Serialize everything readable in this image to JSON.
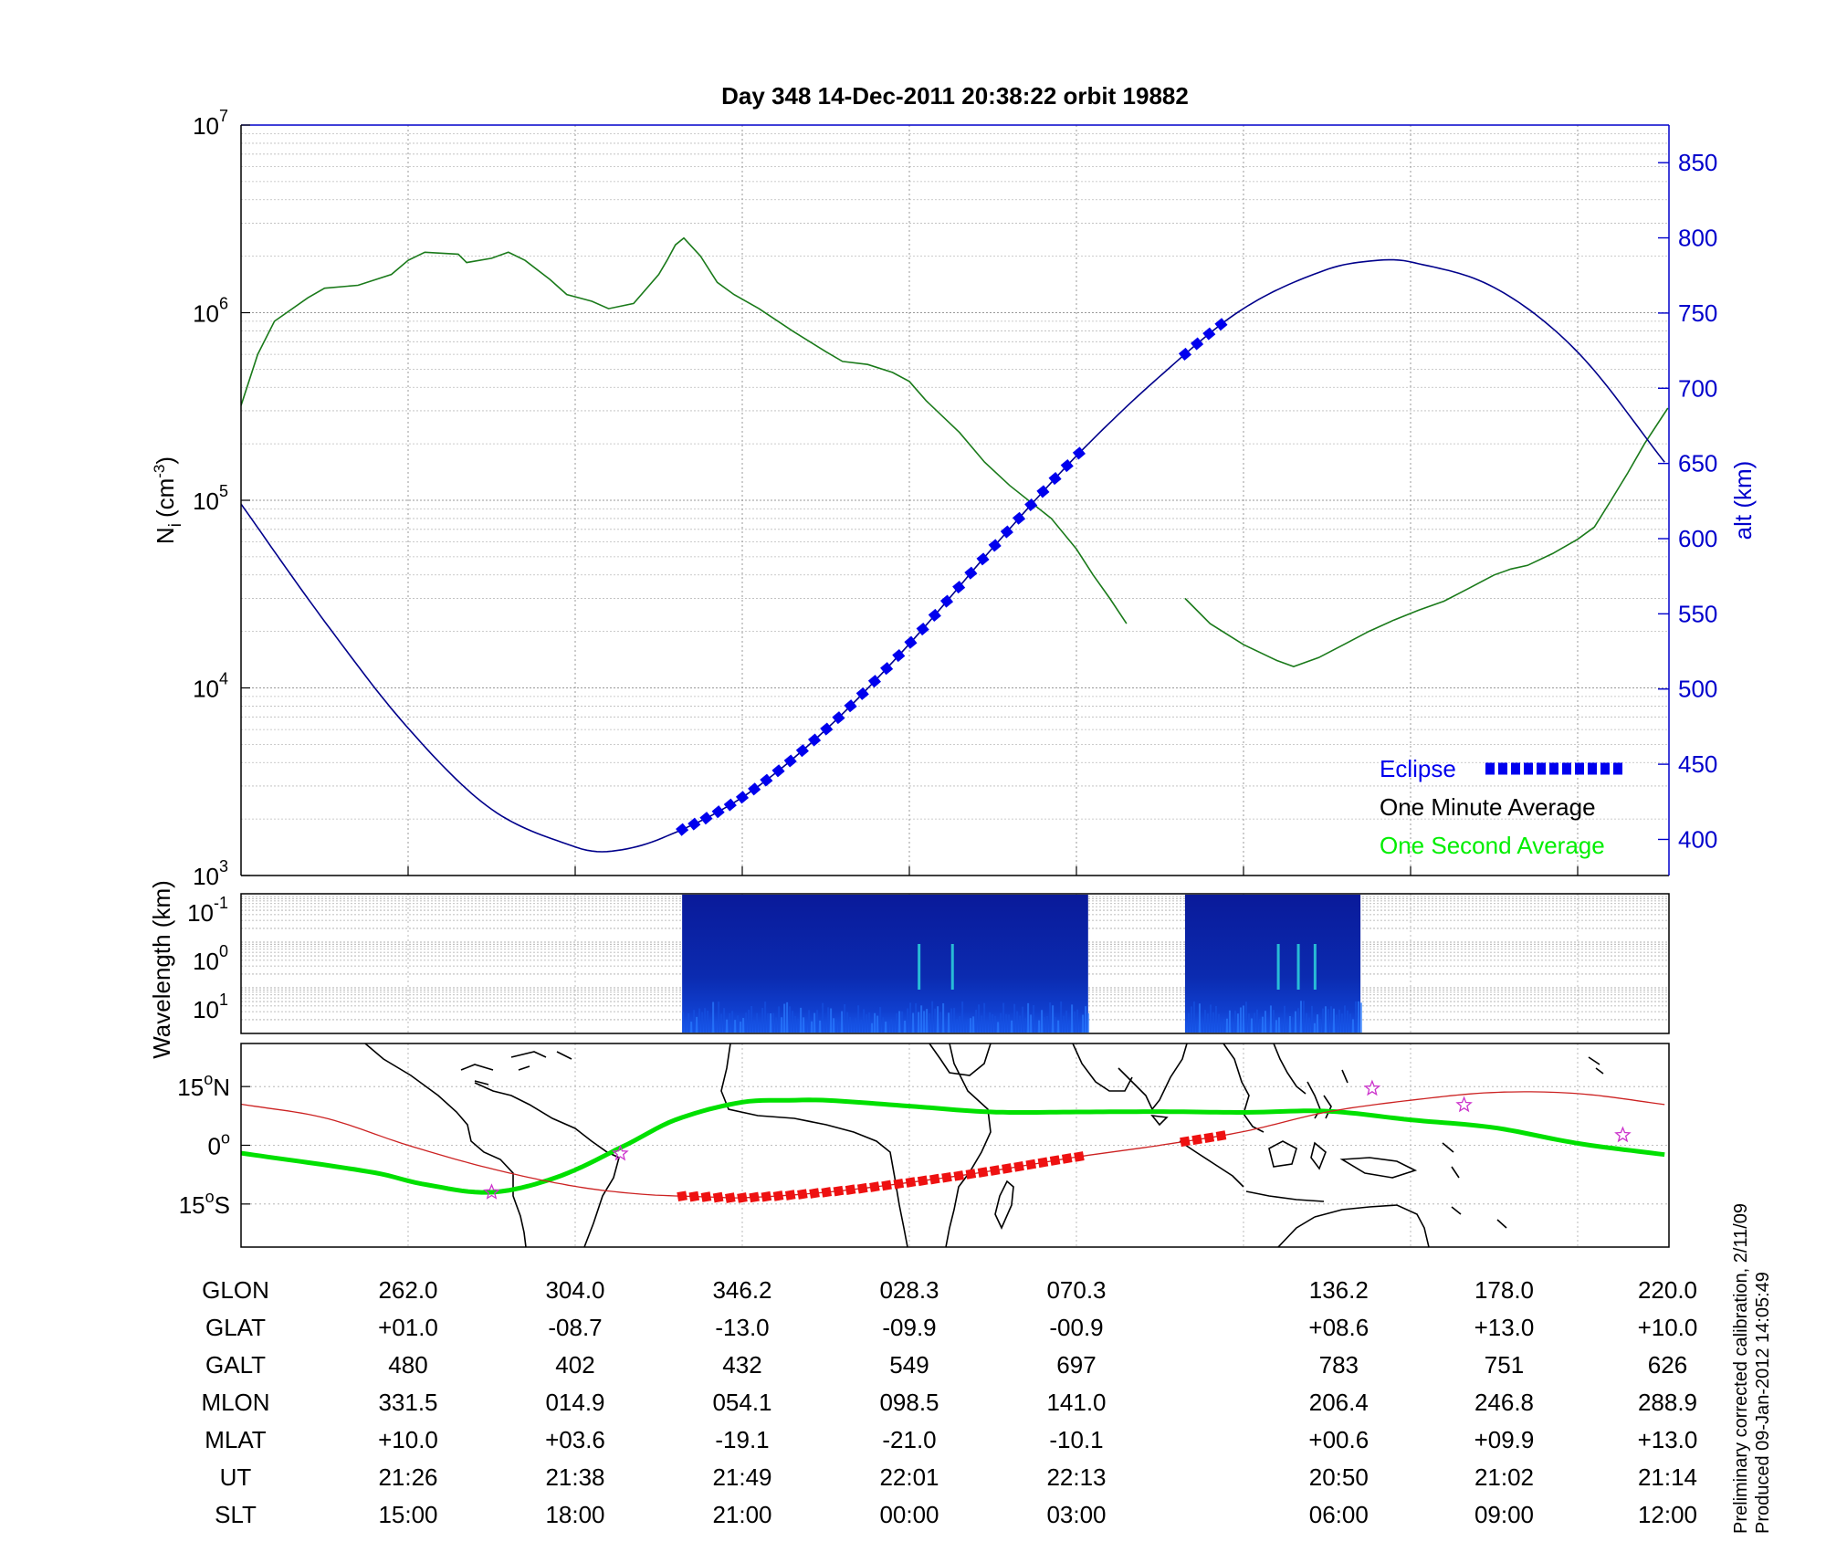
{
  "title": "Day 348  14-Dec-2011 20:38:22   orbit 19882",
  "chart_data": [
    {
      "type": "line",
      "panel": "density-altitude",
      "ylabel_left": "N",
      "ylabel_left_sub": "i",
      "ylabel_left_unit": "(cm",
      "ylabel_left_unit_sup": "-3",
      "ylabel_left_unit_close": ")",
      "ylabel_right": "alt (km)",
      "y_left_scale": "log",
      "y_left_range": [
        1000,
        10000000
      ],
      "y_left_ticks": [
        {
          "base": "10",
          "exp": "3"
        },
        {
          "base": "10",
          "exp": "4"
        },
        {
          "base": "10",
          "exp": "5"
        },
        {
          "base": "10",
          "exp": "6"
        },
        {
          "base": "10",
          "exp": "7"
        }
      ],
      "y_right_range": [
        376,
        875
      ],
      "y_right_ticks": [
        "400",
        "450",
        "500",
        "550",
        "600",
        "650",
        "700",
        "750",
        "800",
        "850"
      ],
      "x_range": [
        0,
        8.54
      ],
      "legend": {
        "placement": "bottom-right",
        "entries": [
          {
            "label": "Eclipse",
            "color": "#0000ee"
          },
          {
            "label": "One Minute Average",
            "color": "#000000"
          },
          {
            "label": "One Second Average",
            "color": "#00ee00"
          }
        ]
      },
      "series": [
        {
          "role": "density",
          "color": "#1a7a1a",
          "segments": [
            [
              [
                0,
                320000
              ],
              [
                0.1,
                600000
              ],
              [
                0.2,
                900000
              ],
              [
                0.4,
                1200000
              ],
              [
                0.5,
                1350000
              ],
              [
                0.7,
                1400000
              ],
              [
                0.9,
                1600000
              ],
              [
                1.0,
                1900000
              ],
              [
                1.1,
                2100000
              ],
              [
                1.3,
                2050000
              ],
              [
                1.35,
                1850000
              ],
              [
                1.5,
                1950000
              ],
              [
                1.6,
                2100000
              ],
              [
                1.7,
                1900000
              ],
              [
                1.85,
                1500000
              ],
              [
                1.95,
                1250000
              ],
              [
                2.1,
                1150000
              ],
              [
                2.2,
                1050000
              ],
              [
                2.35,
                1120000
              ],
              [
                2.5,
                1600000
              ],
              [
                2.55,
                1900000
              ],
              [
                2.6,
                2300000
              ],
              [
                2.65,
                2500000
              ],
              [
                2.75,
                2000000
              ],
              [
                2.85,
                1450000
              ],
              [
                2.95,
                1250000
              ],
              [
                3.1,
                1050000
              ],
              [
                3.3,
                800000
              ],
              [
                3.5,
                620000
              ],
              [
                3.6,
                550000
              ],
              [
                3.75,
                530000
              ],
              [
                3.9,
                480000
              ],
              [
                4.0,
                430000
              ],
              [
                4.1,
                340000
              ],
              [
                4.3,
                230000
              ],
              [
                4.45,
                160000
              ],
              [
                4.6,
                120000
              ],
              [
                4.85,
                80000
              ],
              [
                5.0,
                55000
              ],
              [
                5.1,
                40000
              ],
              [
                5.2,
                30000
              ],
              [
                5.3,
                22000
              ]
            ],
            [
              [
                5.65,
                30000
              ],
              [
                5.8,
                22000
              ],
              [
                6.0,
                17000
              ],
              [
                6.2,
                14000
              ],
              [
                6.3,
                13000
              ],
              [
                6.45,
                14500
              ],
              [
                6.6,
                17000
              ],
              [
                6.75,
                20000
              ],
              [
                6.9,
                23000
              ],
              [
                7.05,
                26000
              ],
              [
                7.2,
                29000
              ],
              [
                7.35,
                34000
              ],
              [
                7.5,
                40000
              ],
              [
                7.6,
                43000
              ],
              [
                7.7,
                45000
              ],
              [
                7.85,
                52000
              ],
              [
                8.0,
                62000
              ],
              [
                8.1,
                72000
              ],
              [
                8.2,
                100000
              ],
              [
                8.3,
                140000
              ],
              [
                8.4,
                200000
              ],
              [
                8.54,
                310000
              ]
            ]
          ]
        },
        {
          "role": "altitude",
          "color": "#00008b",
          "points": [
            [
              0,
              623
            ],
            [
              0.5,
              545
            ],
            [
              1.0,
              474
            ],
            [
              1.5,
              420
            ],
            [
              2.0,
              395
            ],
            [
              2.2,
              392
            ],
            [
              2.5,
              400
            ],
            [
              3.0,
              428
            ],
            [
              3.5,
              473
            ],
            [
              4.0,
              530
            ],
            [
              4.5,
              594
            ],
            [
              5.0,
              655
            ],
            [
              5.5,
              708
            ],
            [
              6.0,
              753
            ],
            [
              6.5,
              779
            ],
            [
              6.8,
              785
            ],
            [
              7.0,
              784
            ],
            [
              7.5,
              767
            ],
            [
              8.0,
              724
            ],
            [
              8.54,
              648
            ]
          ]
        },
        {
          "role": "eclipse",
          "color": "#0000ee",
          "segments": [
            [
              2.64,
              5.07
            ],
            [
              5.65,
              5.9
            ]
          ]
        }
      ]
    },
    {
      "type": "heatmap",
      "panel": "spectrogram",
      "ylabel": "Wavelength (km)",
      "y_ticks": [
        {
          "base": "10",
          "exp": "-1"
        },
        {
          "base": "10",
          "exp": "0"
        },
        {
          "base": "10",
          "exp": "1"
        }
      ],
      "blocks": [
        [
          2.64,
          5.07
        ],
        [
          5.65,
          6.7
        ]
      ]
    },
    {
      "type": "map",
      "panel": "ground-track",
      "lat_ticks": [
        {
          "value": "15",
          "unit": "o",
          "hemi": "N",
          "lat": 15
        },
        {
          "value": "0",
          "unit": "o",
          "hemi": "",
          "lat": 0
        },
        {
          "value": "15",
          "unit": "o",
          "hemi": "S",
          "lat": -15
        }
      ],
      "lat_range": [
        -26,
        26
      ],
      "tracks": [
        {
          "role": "magnetic-equator",
          "color": "#00e000",
          "points": [
            [
              0,
              -2
            ],
            [
              0.8,
              -7
            ],
            [
              1.1,
              -10
            ],
            [
              1.5,
              -12
            ],
            [
              1.9,
              -8
            ],
            [
              2.3,
              0
            ],
            [
              2.6,
              6.5
            ],
            [
              3.0,
              11
            ],
            [
              3.3,
              11.5
            ],
            [
              3.5,
              11.5
            ],
            [
              4.0,
              10
            ],
            [
              4.5,
              8.5
            ],
            [
              5.0,
              8.5
            ],
            [
              5.5,
              8.6
            ],
            [
              6.0,
              8.4
            ],
            [
              6.5,
              8.7
            ],
            [
              7.0,
              6.5
            ],
            [
              7.5,
              4.5
            ],
            [
              8.0,
              0.5
            ],
            [
              8.54,
              -2.5
            ]
          ]
        },
        {
          "role": "orbit",
          "color": "#cc2222",
          "points": [
            [
              0,
              10.5
            ],
            [
              0.5,
              7
            ],
            [
              1.0,
              0
            ],
            [
              1.5,
              -6
            ],
            [
              2.0,
              -10.5
            ],
            [
              2.4,
              -12.5
            ],
            [
              2.8,
              -13.2
            ],
            [
              3.0,
              -13.4
            ],
            [
              3.5,
              -12
            ],
            [
              4.0,
              -9.5
            ],
            [
              4.5,
              -6.5
            ],
            [
              5.0,
              -3
            ],
            [
              5.5,
              0
            ],
            [
              6.0,
              3.5
            ],
            [
              6.5,
              8.5
            ],
            [
              7.0,
              11.5
            ],
            [
              7.5,
              13.5
            ],
            [
              8.0,
              13.2
            ],
            [
              8.54,
              10.3
            ]
          ]
        },
        {
          "role": "eclipse",
          "color": "#ee1111",
          "segments": [
            [
              2.64,
              5.07
            ],
            [
              5.65,
              5.9
            ]
          ]
        }
      ],
      "stars": [
        [
          1.5,
          -12
        ],
        [
          2.27,
          -2.1
        ],
        [
          6.77,
          14.5
        ],
        [
          7.32,
          10.3
        ],
        [
          8.27,
          2.6
        ]
      ]
    }
  ],
  "ephemeris": {
    "labels": [
      "GLON",
      "GLAT",
      "GALT",
      "MLON",
      "MLAT",
      "UT",
      "SLT"
    ],
    "columns": [
      {
        "x": 1,
        "values": [
          "262.0",
          "+01.0",
          "480",
          "331.5",
          "+10.0",
          "21:26",
          "15:00"
        ]
      },
      {
        "x": 2,
        "values": [
          "304.0",
          "-08.7",
          "402",
          "014.9",
          "+03.6",
          "21:38",
          "18:00"
        ]
      },
      {
        "x": 3,
        "values": [
          "346.2",
          "-13.0",
          "432",
          "054.1",
          "-19.1",
          "21:49",
          "21:00"
        ]
      },
      {
        "x": 4,
        "values": [
          "028.3",
          "-09.9",
          "549",
          "098.5",
          "-21.0",
          "22:01",
          "00:00"
        ]
      },
      {
        "x": 5,
        "values": [
          "070.3",
          "-00.9",
          "697",
          "141.0",
          "-10.1",
          "22:13",
          "03:00"
        ]
      },
      {
        "x": 6.57,
        "values": [
          "136.2",
          "+08.6",
          "783",
          "206.4",
          "+00.6",
          "20:50",
          "06:00"
        ]
      },
      {
        "x": 7.56,
        "values": [
          "178.0",
          "+13.0",
          "751",
          "246.8",
          "+09.9",
          "21:02",
          "09:00"
        ]
      },
      {
        "x": 8.56,
        "values": [
          "220.0",
          "+10.0",
          "626",
          "288.9",
          "+13.0",
          "21:14",
          "12:00"
        ]
      }
    ]
  },
  "footer": {
    "line1": "Preliminary corrected calibration, 2/11/09",
    "line2": "Produced 09-Jan-2012 14:05:49"
  }
}
